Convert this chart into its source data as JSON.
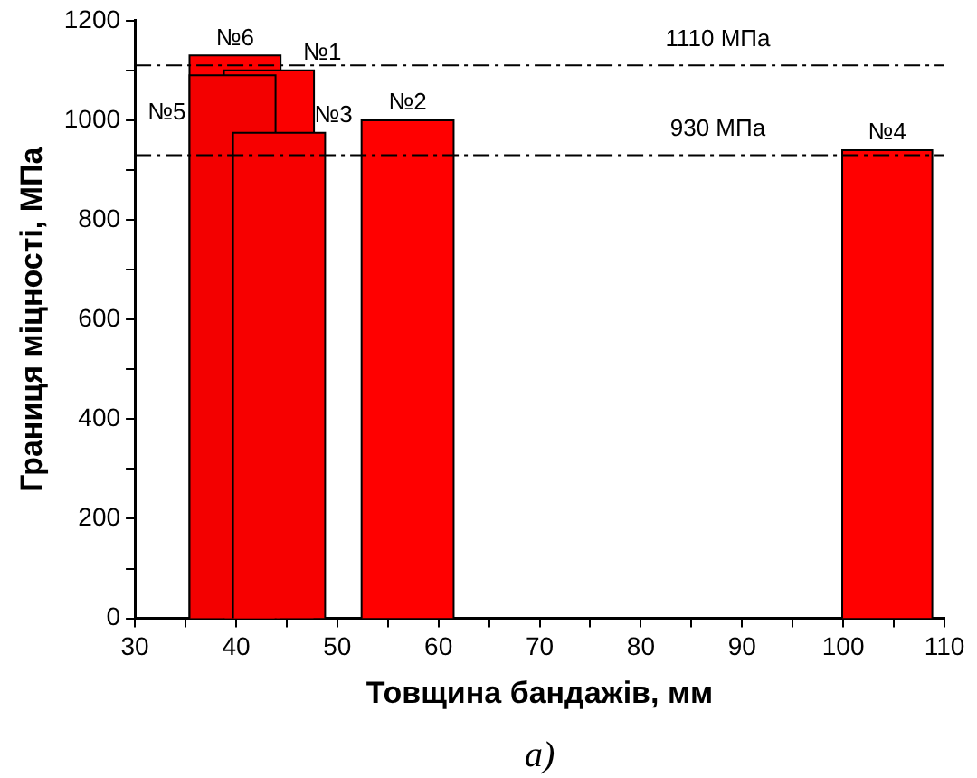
{
  "chart_data": {
    "type": "area",
    "xlabel": "Товщина бандажів, мм",
    "ylabel": "Границя міцності, МПа",
    "xlim": [
      30,
      110
    ],
    "xticks": [
      30,
      {
        "value": 35,
        "label": null
      },
      40,
      {
        "value": 45,
        "label": null
      },
      50,
      {
        "value": 55,
        "label": null
      },
      60,
      {
        "value": 65,
        "label": null
      },
      70,
      {
        "value": 75,
        "label": null
      },
      80,
      {
        "value": 85,
        "label": null
      },
      90,
      {
        "value": 95,
        "label": null
      },
      100,
      {
        "value": 105,
        "label": null
      },
      110
    ],
    "ylim": [
      0,
      1200
    ],
    "yticks": [
      0,
      {
        "value": 100,
        "label": null
      },
      200,
      {
        "value": 300,
        "label": null
      },
      400,
      {
        "value": 500,
        "label": null
      },
      600,
      {
        "value": 700,
        "label": null
      },
      800,
      {
        "value": 900,
        "label": null
      },
      1000,
      {
        "value": 1100,
        "label": null
      },
      1200
    ],
    "grid": false,
    "legend": false,
    "series": [
      {
        "name": "№6",
        "color": "#ff0000",
        "x": [
          35.4,
          44.4
        ],
        "values": [
          1130,
          1130
        ]
      },
      {
        "name": "№1",
        "color": "#fb0000",
        "x": [
          38.8,
          47.7
        ],
        "values": [
          1100,
          1100
        ]
      },
      {
        "name": "№5",
        "color": "#f30000",
        "x": [
          35.4,
          43.9
        ],
        "values": [
          1090,
          1090
        ]
      },
      {
        "name": "№3",
        "color": "#f70000",
        "x": [
          39.7,
          48.8
        ],
        "values": [
          975,
          975
        ]
      },
      {
        "name": "№2",
        "color": "#ff0000",
        "x": [
          52.4,
          61.5
        ],
        "values": [
          1000,
          1000
        ]
      },
      {
        "name": "№4",
        "color": "#ff0000",
        "x": [
          99.9,
          108.8
        ],
        "values": [
          940,
          940
        ]
      }
    ],
    "ref_lines": [
      {
        "axis": "y",
        "value": 1110,
        "label": "1110 МПа",
        "line_style": "dashdot"
      },
      {
        "axis": "y",
        "value": 930,
        "label": "930 МПа",
        "line_style": "dashdot"
      }
    ],
    "annotations": [
      "а)"
    ]
  }
}
